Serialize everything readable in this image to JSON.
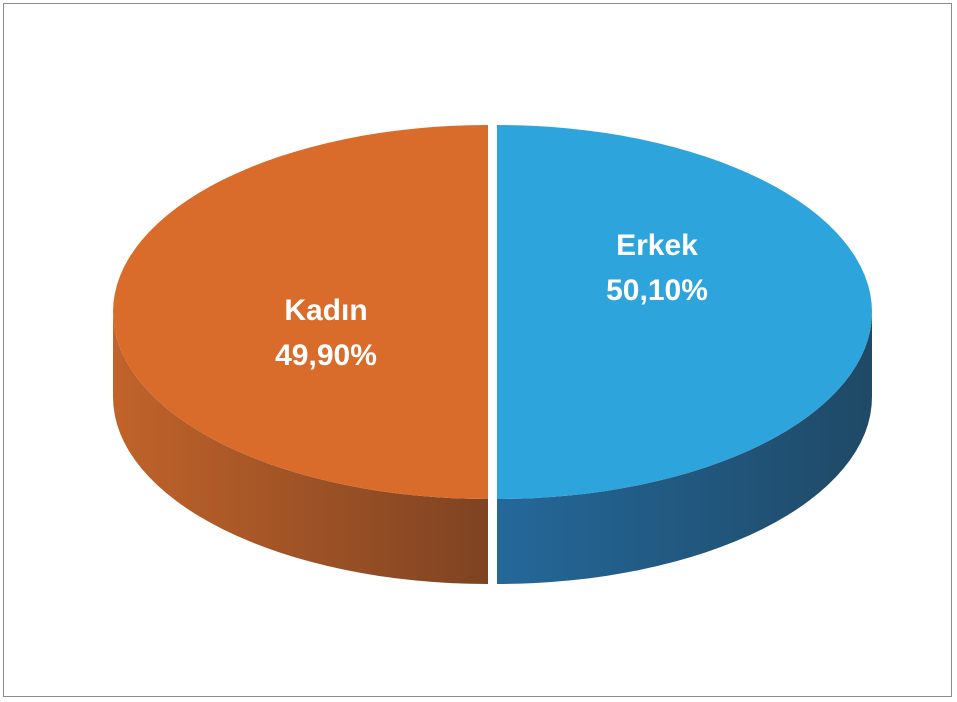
{
  "chart_data": {
    "type": "pie",
    "title": "",
    "three_d": true,
    "categories": [
      "Erkek",
      "Kadın"
    ],
    "values": [
      50.1,
      49.9
    ],
    "value_labels": [
      "50,10%",
      "49,90%"
    ],
    "colors": {
      "Erkek": {
        "top": "#2ea4dc",
        "side_light": "#24689a",
        "side_dark": "#1f4966"
      },
      "Kadın": {
        "top": "#d96c2b",
        "side_light": "#c1632a",
        "side_dark": "#7e4322"
      }
    },
    "legend": "none",
    "data_labels": "inside"
  }
}
